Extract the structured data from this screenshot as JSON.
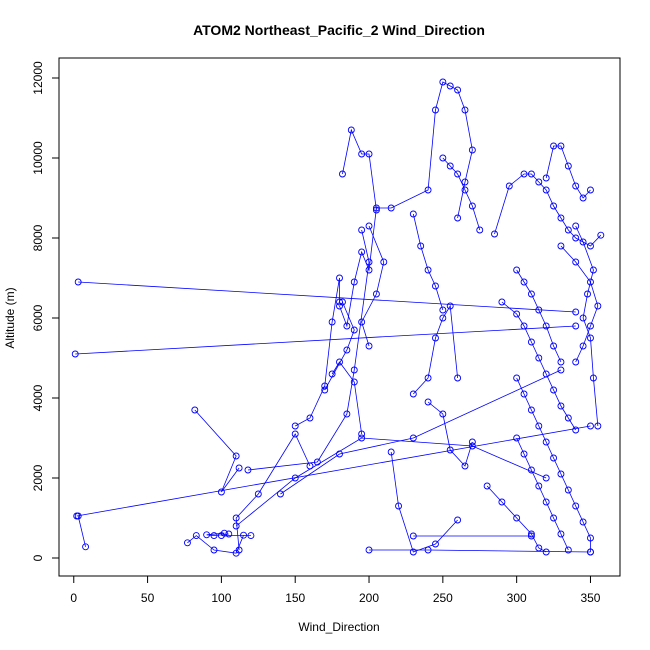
{
  "chart_data": {
    "type": "line",
    "title": "ATOM2 Northeast_Pacific_2 Wind_Direction",
    "xlabel": "Wind_Direction",
    "ylabel": "Altitude (m)",
    "xlim": [
      -10,
      370
    ],
    "ylim": [
      -450,
      12500
    ],
    "x_ticks": [
      0,
      50,
      100,
      150,
      200,
      250,
      300,
      350
    ],
    "y_ticks": [
      0,
      2000,
      4000,
      6000,
      8000,
      10000,
      12000
    ],
    "x_tick_labels": [
      "0",
      "50",
      "100",
      "150",
      "200",
      "250",
      "300",
      "350"
    ],
    "y_tick_labels": [
      "0",
      "2000",
      "4000",
      "6000",
      "8000",
      "10000",
      "12000"
    ],
    "grid": false,
    "legend": "none",
    "series_color": "#0000ff",
    "series": [
      {
        "points": [
          [
            3,
            1050
          ],
          [
            8,
            280
          ],
          [
            -1,
            -1
          ],
          [
            1,
            5100
          ],
          [
            340,
            5800
          ],
          [
            -1,
            -1
          ],
          [
            3,
            6900
          ],
          [
            340,
            6150
          ],
          [
            -1,
            -1
          ],
          [
            77,
            380
          ],
          [
            83,
            560
          ],
          [
            95,
            200
          ],
          [
            110,
            120
          ],
          [
            115,
            570
          ],
          [
            -1,
            -1
          ],
          [
            82,
            3700
          ],
          [
            110,
            2550
          ],
          [
            100,
            1650
          ],
          [
            112,
            2250
          ],
          [
            -1,
            -1
          ],
          [
            100,
            560
          ],
          [
            120,
            560
          ],
          [
            -1,
            -1
          ],
          [
            105,
            600
          ],
          [
            95,
            560
          ],
          [
            90,
            580
          ],
          [
            102,
            620
          ],
          [
            -1,
            -1
          ],
          [
            112,
            200
          ],
          [
            110,
            1000
          ],
          [
            125,
            1600
          ],
          [
            150,
            3100
          ],
          [
            160,
            2300
          ],
          [
            -1,
            -1
          ],
          [
            150,
            3300
          ],
          [
            160,
            3500
          ],
          [
            170,
            4300
          ],
          [
            175,
            5900
          ],
          [
            180,
            7000
          ],
          [
            180,
            6400
          ],
          [
            -1,
            -1
          ],
          [
            118,
            2200
          ],
          [
            165,
            2400
          ],
          [
            185,
            3600
          ],
          [
            190,
            4700
          ],
          [
            200,
            7400
          ],
          [
            195,
            8200
          ],
          [
            -1,
            -1
          ],
          [
            140,
            1600
          ],
          [
            180,
            2600
          ],
          [
            230,
            3000
          ],
          [
            330,
            4700
          ],
          [
            -1,
            -1
          ],
          [
            110,
            800
          ],
          [
            150,
            2000
          ],
          [
            195,
            3000
          ],
          [
            270,
            2800
          ],
          [
            320,
            2000
          ],
          [
            -1,
            -1
          ],
          [
            2,
            1050
          ],
          [
            350,
            3300
          ],
          [
            -1,
            -1
          ],
          [
            180,
            6300
          ],
          [
            185,
            5800
          ],
          [
            190,
            6900
          ],
          [
            195,
            7650
          ],
          [
            200,
            7200
          ],
          [
            205,
            8750
          ],
          [
            215,
            8750
          ],
          [
            240,
            9200
          ],
          [
            245,
            11200
          ],
          [
            250,
            11900
          ],
          [
            255,
            11800
          ],
          [
            260,
            11700
          ],
          [
            265,
            11200
          ],
          [
            270,
            10200
          ],
          [
            265,
            9400
          ],
          [
            260,
            8500
          ],
          [
            -1,
            -1
          ],
          [
            182,
            9600
          ],
          [
            188,
            10700
          ],
          [
            195,
            10100
          ],
          [
            200,
            10100
          ],
          [
            205,
            8700
          ],
          [
            -1,
            -1
          ],
          [
            200,
            8300
          ],
          [
            210,
            7400
          ],
          [
            205,
            6600
          ],
          [
            195,
            5900
          ],
          [
            200,
            5300
          ],
          [
            -1,
            -1
          ],
          [
            182,
            6400
          ],
          [
            190,
            5700
          ],
          [
            185,
            5200
          ],
          [
            170,
            4200
          ],
          [
            -1,
            -1
          ],
          [
            175,
            4600
          ],
          [
            180,
            4900
          ],
          [
            190,
            4400
          ],
          [
            195,
            3100
          ],
          [
            -1,
            -1
          ],
          [
            215,
            2650
          ],
          [
            220,
            1300
          ],
          [
            230,
            150
          ],
          [
            245,
            350
          ],
          [
            260,
            950
          ],
          [
            -1,
            -1
          ],
          [
            200,
            200
          ],
          [
            240,
            200
          ],
          [
            350,
            150
          ],
          [
            -1,
            -1
          ],
          [
            230,
            550
          ],
          [
            310,
            550
          ],
          [
            -1,
            -1
          ],
          [
            230,
            4100
          ],
          [
            240,
            4500
          ],
          [
            245,
            5500
          ],
          [
            250,
            6000
          ],
          [
            255,
            6300
          ],
          [
            260,
            4500
          ],
          [
            -1,
            -1
          ],
          [
            240,
            3900
          ],
          [
            250,
            3600
          ],
          [
            255,
            2700
          ],
          [
            265,
            2300
          ],
          [
            270,
            2900
          ],
          [
            -1,
            -1
          ],
          [
            250,
            10000
          ],
          [
            255,
            9800
          ],
          [
            260,
            9600
          ],
          [
            265,
            9200
          ],
          [
            270,
            8800
          ],
          [
            275,
            8200
          ],
          [
            -1,
            -1
          ],
          [
            230,
            8600
          ],
          [
            235,
            7800
          ],
          [
            240,
            7200
          ],
          [
            245,
            6800
          ],
          [
            250,
            6200
          ],
          [
            -1,
            -1
          ],
          [
            285,
            8100
          ],
          [
            295,
            9300
          ],
          [
            305,
            9600
          ],
          [
            310,
            9600
          ],
          [
            315,
            9400
          ],
          [
            320,
            9200
          ],
          [
            325,
            8800
          ],
          [
            330,
            8500
          ],
          [
            335,
            8200
          ],
          [
            340,
            8000
          ],
          [
            350,
            7800
          ],
          [
            357,
            8070
          ],
          [
            -1,
            -1
          ],
          [
            290,
            6400
          ],
          [
            300,
            6100
          ],
          [
            305,
            5800
          ],
          [
            310,
            5400
          ],
          [
            315,
            5000
          ],
          [
            320,
            4600
          ],
          [
            325,
            4200
          ],
          [
            330,
            3800
          ],
          [
            335,
            3500
          ],
          [
            340,
            3200
          ],
          [
            -1,
            -1
          ],
          [
            300,
            7200
          ],
          [
            305,
            6900
          ],
          [
            310,
            6600
          ],
          [
            315,
            6200
          ],
          [
            320,
            5800
          ],
          [
            325,
            5300
          ],
          [
            330,
            4900
          ],
          [
            -1,
            -1
          ],
          [
            300,
            4500
          ],
          [
            305,
            4100
          ],
          [
            310,
            3700
          ],
          [
            315,
            3300
          ],
          [
            320,
            2900
          ],
          [
            325,
            2500
          ],
          [
            330,
            2100
          ],
          [
            335,
            1700
          ],
          [
            340,
            1300
          ],
          [
            345,
            900
          ],
          [
            350,
            500
          ],
          [
            350,
            150
          ],
          [
            -1,
            -1
          ],
          [
            300,
            3000
          ],
          [
            305,
            2600
          ],
          [
            310,
            2200
          ],
          [
            315,
            1800
          ],
          [
            320,
            1400
          ],
          [
            325,
            1000
          ],
          [
            330,
            600
          ],
          [
            335,
            200
          ],
          [
            -1,
            -1
          ],
          [
            280,
            1800
          ],
          [
            290,
            1400
          ],
          [
            300,
            1000
          ],
          [
            310,
            600
          ],
          [
            315,
            250
          ],
          [
            320,
            150
          ],
          [
            -1,
            -1
          ],
          [
            320,
            9500
          ],
          [
            325,
            10300
          ],
          [
            330,
            10300
          ],
          [
            335,
            9800
          ],
          [
            340,
            9300
          ],
          [
            345,
            9000
          ],
          [
            350,
            9200
          ],
          [
            -1,
            -1
          ],
          [
            330,
            7800
          ],
          [
            340,
            7400
          ],
          [
            350,
            6900
          ],
          [
            355,
            6300
          ],
          [
            350,
            5800
          ],
          [
            345,
            5300
          ],
          [
            340,
            4900
          ],
          [
            -1,
            -1
          ],
          [
            340,
            8300
          ],
          [
            345,
            7900
          ],
          [
            352,
            7200
          ],
          [
            348,
            6600
          ],
          [
            345,
            6000
          ],
          [
            350,
            5500
          ],
          [
            352,
            4500
          ],
          [
            355,
            3300
          ],
          [
            -1,
            -1
          ]
        ]
      }
    ]
  }
}
